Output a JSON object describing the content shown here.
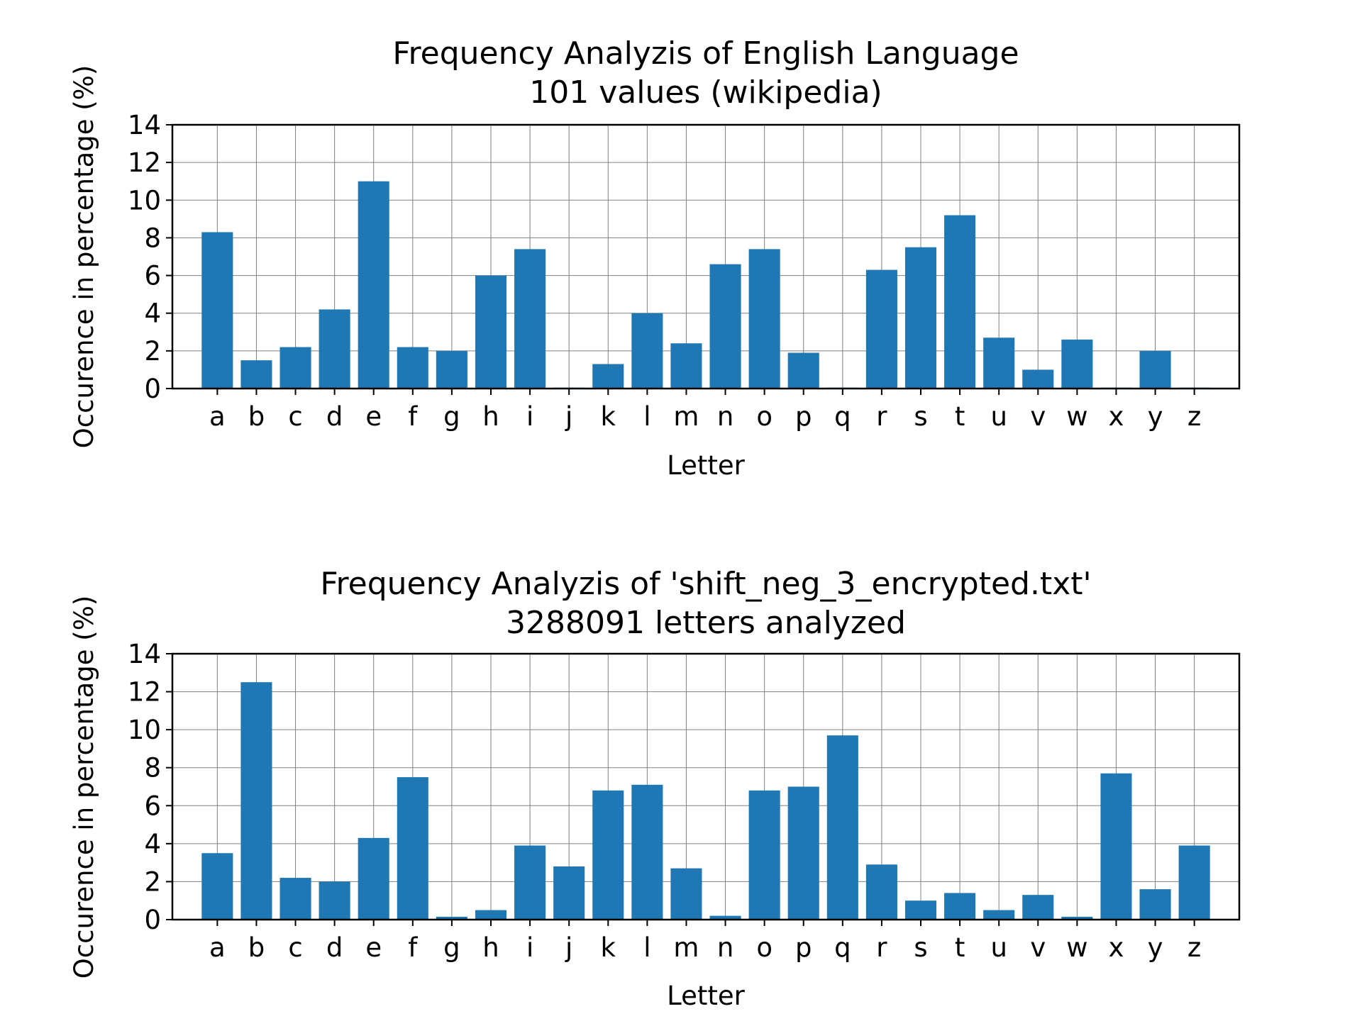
{
  "chart_data": [
    {
      "type": "bar",
      "title_line1": "Frequency Analyzis of English Language",
      "title_line2": "101 values (wikipedia)",
      "xlabel": "Letter",
      "ylabel": "Occurence in percentage (%)",
      "ylim": [
        0,
        14
      ],
      "yticks": [
        0,
        2,
        4,
        6,
        8,
        10,
        12,
        14
      ],
      "grid": true,
      "color": "#1f77b4",
      "categories": [
        "a",
        "b",
        "c",
        "d",
        "e",
        "f",
        "g",
        "h",
        "i",
        "j",
        "k",
        "l",
        "m",
        "n",
        "o",
        "p",
        "q",
        "r",
        "s",
        "t",
        "u",
        "v",
        "w",
        "x",
        "y",
        "z"
      ],
      "values": [
        8.3,
        1.5,
        2.2,
        4.2,
        11.0,
        2.2,
        2.0,
        6.0,
        7.4,
        0.05,
        1.3,
        4.0,
        2.4,
        6.6,
        7.4,
        1.9,
        0.05,
        6.3,
        7.5,
        9.2,
        2.7,
        1.0,
        2.6,
        0.05,
        2.0,
        0.05
      ]
    },
    {
      "type": "bar",
      "title_line1": "Frequency Analyzis of 'shift_neg_3_encrypted.txt'",
      "title_line2": "3288091 letters analyzed",
      "xlabel": "Letter",
      "ylabel": "Occurence in percentage (%)",
      "ylim": [
        0,
        14
      ],
      "yticks": [
        0,
        2,
        4,
        6,
        8,
        10,
        12,
        14
      ],
      "grid": true,
      "color": "#1f77b4",
      "categories": [
        "a",
        "b",
        "c",
        "d",
        "e",
        "f",
        "g",
        "h",
        "i",
        "j",
        "k",
        "l",
        "m",
        "n",
        "o",
        "p",
        "q",
        "r",
        "s",
        "t",
        "u",
        "v",
        "w",
        "x",
        "y",
        "z"
      ],
      "values": [
        3.5,
        12.5,
        2.2,
        2.0,
        4.3,
        7.5,
        0.15,
        0.5,
        3.9,
        2.8,
        6.8,
        7.1,
        2.7,
        0.2,
        6.8,
        7.0,
        9.7,
        2.9,
        1.0,
        1.4,
        0.5,
        1.3,
        0.15,
        7.7,
        1.6,
        3.9
      ]
    }
  ]
}
